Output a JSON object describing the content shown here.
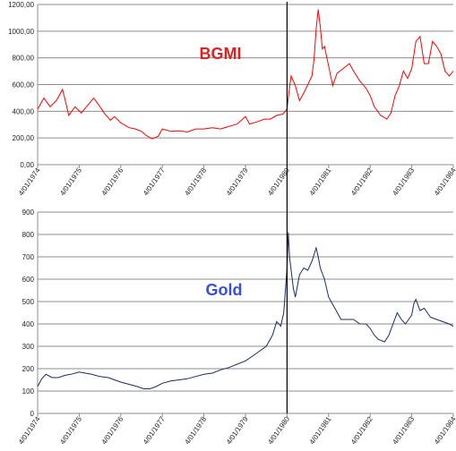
{
  "chart_data": [
    {
      "type": "line",
      "title": "BGMI",
      "color": "#ff0000",
      "xlabel": "",
      "ylabel": "",
      "ylim": [
        0,
        1300
      ],
      "yticks": [
        "0,00",
        "200,00",
        "400,00",
        "600,00",
        "800,00",
        "1000,00",
        "1200,00"
      ],
      "xticks": [
        "4/01/1974",
        "4/01/1975",
        "4/01/1976",
        "4/01/1977",
        "4/01/1978",
        "4/01/1979",
        "4/01/1980",
        "4/01/1981",
        "4/01/1982",
        "4/01/1983",
        "4/01/1984"
      ],
      "grid": true,
      "series": [
        {
          "x": [
            1974.0,
            1974.15,
            1974.3,
            1974.45,
            1974.6,
            1974.65,
            1974.75,
            1974.9,
            1975.05,
            1975.2,
            1975.35,
            1975.5,
            1975.6,
            1975.75,
            1975.85,
            1976.0,
            1976.2,
            1976.35,
            1976.5,
            1976.6,
            1976.75,
            1976.9,
            1977.0,
            1977.2,
            1977.4,
            1977.6,
            1977.8,
            1978.0,
            1978.2,
            1978.4,
            1978.6,
            1978.8,
            1979.0,
            1979.1,
            1979.2,
            1979.3,
            1979.45,
            1979.6,
            1979.75,
            1979.9,
            1980.0,
            1980.05,
            1980.1,
            1980.2,
            1980.3,
            1980.4,
            1980.5,
            1980.6,
            1980.65,
            1980.7,
            1980.75,
            1980.8,
            1980.85,
            1980.9,
            1981.0,
            1981.1,
            1981.2,
            1981.35,
            1981.5,
            1981.6,
            1981.75,
            1981.9,
            1982.0,
            1982.1,
            1982.25,
            1982.4,
            1982.5,
            1982.6,
            1982.7,
            1982.8,
            1982.9,
            1983.0,
            1983.1,
            1983.2,
            1983.3,
            1983.4,
            1983.5,
            1983.6,
            1983.7,
            1983.8,
            1983.9,
            1984.0
          ],
          "values": [
            450,
            540,
            470,
            520,
            610,
            540,
            400,
            470,
            420,
            480,
            540,
            470,
            420,
            360,
            390,
            340,
            300,
            290,
            270,
            240,
            210,
            230,
            290,
            270,
            275,
            265,
            290,
            290,
            300,
            290,
            310,
            330,
            390,
            330,
            340,
            350,
            370,
            370,
            400,
            410,
            450,
            600,
            720,
            640,
            520,
            580,
            650,
            720,
            860,
            1100,
            1260,
            1120,
            940,
            960,
            800,
            640,
            740,
            780,
            820,
            760,
            680,
            620,
            560,
            470,
            400,
            370,
            420,
            560,
            640,
            760,
            700,
            780,
            1000,
            1040,
            820,
            820,
            1000,
            960,
            900,
            760,
            720,
            760
          ]
        }
      ]
    },
    {
      "type": "line",
      "title": "Gold",
      "color": "#1a2b66",
      "xlabel": "",
      "ylabel": "",
      "ylim": [
        0,
        900
      ],
      "yticks": [
        "0",
        "100",
        "200",
        "300",
        "400",
        "500",
        "600",
        "700",
        "800",
        "900"
      ],
      "xticks": [
        "4/01/1974",
        "4/01/1975",
        "4/01/1976",
        "4/01/1977",
        "4/01/1978",
        "4/01/1979",
        "4/01/1980",
        "4/01/1981",
        "4/01/1982",
        "4/01/1983",
        "4/01/1984"
      ],
      "grid": true,
      "series": [
        {
          "x": [
            1974.0,
            1974.1,
            1974.2,
            1974.35,
            1974.5,
            1974.65,
            1974.8,
            1975.0,
            1975.15,
            1975.3,
            1975.5,
            1975.7,
            1975.85,
            1976.0,
            1976.2,
            1976.4,
            1976.55,
            1976.7,
            1976.85,
            1977.0,
            1977.2,
            1977.4,
            1977.6,
            1977.8,
            1978.0,
            1978.2,
            1978.4,
            1978.6,
            1978.8,
            1979.0,
            1979.2,
            1979.35,
            1979.5,
            1979.65,
            1979.75,
            1979.85,
            1979.92,
            1980.0,
            1980.03,
            1980.06,
            1980.1,
            1980.15,
            1980.2,
            1980.3,
            1980.4,
            1980.5,
            1980.6,
            1980.7,
            1980.75,
            1980.8,
            1980.9,
            1981.0,
            1981.15,
            1981.3,
            1981.45,
            1981.6,
            1981.75,
            1981.9,
            1982.0,
            1982.1,
            1982.2,
            1982.35,
            1982.45,
            1982.55,
            1982.65,
            1982.75,
            1982.85,
            1983.0,
            1983.05,
            1983.1,
            1983.2,
            1983.3,
            1983.45,
            1983.6,
            1983.75,
            1983.9,
            1984.0
          ],
          "values": [
            120,
            155,
            175,
            160,
            160,
            170,
            175,
            185,
            180,
            175,
            165,
            160,
            150,
            140,
            130,
            120,
            110,
            110,
            120,
            135,
            145,
            150,
            155,
            165,
            175,
            180,
            195,
            205,
            220,
            235,
            260,
            280,
            300,
            350,
            410,
            390,
            450,
            650,
            810,
            700,
            640,
            560,
            520,
            620,
            650,
            640,
            680,
            740,
            700,
            650,
            600,
            520,
            470,
            420,
            420,
            420,
            400,
            400,
            380,
            350,
            330,
            320,
            350,
            400,
            450,
            420,
            400,
            440,
            490,
            510,
            460,
            470,
            430,
            420,
            410,
            400,
            390
          ]
        }
      ]
    }
  ]
}
